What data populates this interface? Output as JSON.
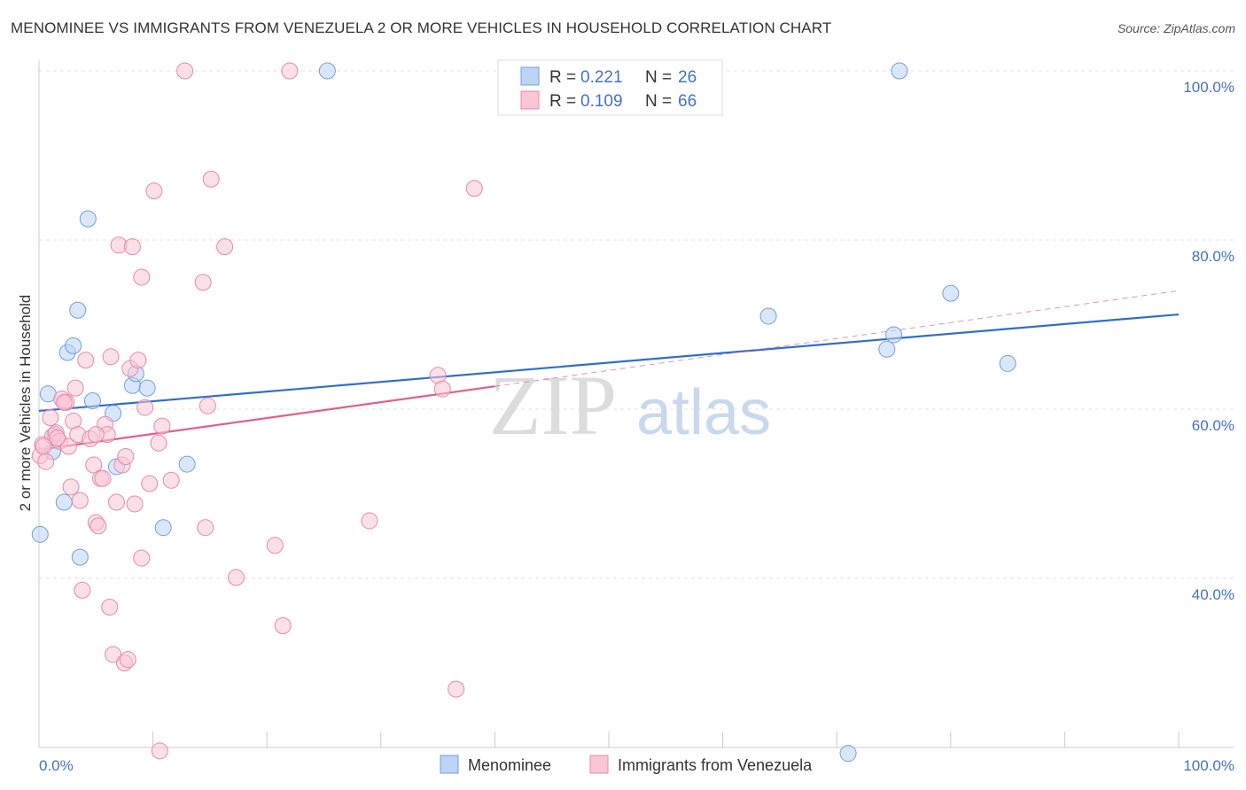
{
  "chart_data": {
    "type": "scatter",
    "title": "MENOMINEE VS IMMIGRANTS FROM VENEZUELA 2 OR MORE VEHICLES IN HOUSEHOLD CORRELATION CHART",
    "source": "Source: ZipAtlas.com",
    "xlabel": "",
    "ylabel": "2 or more Vehicles in Household",
    "xlim": [
      0,
      100
    ],
    "ylim": [
      18,
      102
    ],
    "x_tick_labels": {
      "left": "0.0%",
      "right": "100.0%"
    },
    "y_ticks": [
      {
        "value": 40,
        "label": "40.0%"
      },
      {
        "value": 60,
        "label": "60.0%"
      },
      {
        "value": 80,
        "label": "80.0%"
      },
      {
        "value": 100,
        "label": "100.0%"
      }
    ],
    "watermark": {
      "zip": "ZIP",
      "atlas": "atlas"
    },
    "legend": [
      {
        "r_label": "R =",
        "r_value": "0.221",
        "n_label": "N =",
        "n_value": "26"
      },
      {
        "r_label": "R =",
        "r_value": "0.109",
        "n_label": "N =",
        "n_value": "66"
      }
    ],
    "series": [
      {
        "name": "Menominee",
        "color": "#6f9fe0",
        "fill": "#bcd4f5",
        "line_color": "#2f6fcc",
        "trend": {
          "x0": 0,
          "y0": 59.8,
          "x1": 100,
          "y1": 71.2
        },
        "points": [
          [
            0.1,
            45.2
          ],
          [
            0.8,
            61.8
          ],
          [
            1.2,
            55.0
          ],
          [
            1.4,
            57.0
          ],
          [
            2.2,
            49.0
          ],
          [
            2.5,
            66.7
          ],
          [
            3.0,
            67.5
          ],
          [
            3.4,
            71.7
          ],
          [
            3.6,
            42.5
          ],
          [
            4.3,
            82.5
          ],
          [
            4.7,
            61.0
          ],
          [
            6.5,
            59.5
          ],
          [
            6.8,
            53.2
          ],
          [
            8.2,
            62.8
          ],
          [
            8.5,
            64.2
          ],
          [
            9.5,
            62.5
          ],
          [
            10.9,
            46.0
          ],
          [
            13.0,
            53.5
          ],
          [
            25.3,
            100.0
          ],
          [
            64.0,
            71.0
          ],
          [
            74.4,
            67.1
          ],
          [
            75.0,
            68.8
          ],
          [
            75.5,
            100.0
          ],
          [
            80.0,
            73.7
          ],
          [
            85.0,
            65.4
          ],
          [
            71.0,
            19.3
          ]
        ]
      },
      {
        "name": "Immigrants from Venezuela",
        "color": "#e888a8",
        "fill": "#f9c6d6",
        "line_color": "#e06090",
        "trend": {
          "x0": 0,
          "y0": 55.2,
          "x1": 40,
          "y1": 62.7
        },
        "trend_ext": {
          "x0": 40,
          "y0": 62.7,
          "x1": 100,
          "y1": 74.0
        },
        "points": [
          [
            0.1,
            54.5
          ],
          [
            0.3,
            55.8
          ],
          [
            0.6,
            53.8
          ],
          [
            1.0,
            59.0
          ],
          [
            1.2,
            56.8
          ],
          [
            1.5,
            57.2
          ],
          [
            1.8,
            56.2
          ],
          [
            2.0,
            61.2
          ],
          [
            2.4,
            60.8
          ],
          [
            2.6,
            55.6
          ],
          [
            2.8,
            50.8
          ],
          [
            3.0,
            58.6
          ],
          [
            3.2,
            62.5
          ],
          [
            3.4,
            57.0
          ],
          [
            3.6,
            49.2
          ],
          [
            3.8,
            38.6
          ],
          [
            4.1,
            65.8
          ],
          [
            4.5,
            56.5
          ],
          [
            4.8,
            53.4
          ],
          [
            5.0,
            46.6
          ],
          [
            5.2,
            46.2
          ],
          [
            5.4,
            51.8
          ],
          [
            5.6,
            51.8
          ],
          [
            5.8,
            58.2
          ],
          [
            6.0,
            57.0
          ],
          [
            6.2,
            36.6
          ],
          [
            6.3,
            66.2
          ],
          [
            6.5,
            31.0
          ],
          [
            6.8,
            49.0
          ],
          [
            7.0,
            79.4
          ],
          [
            7.3,
            53.4
          ],
          [
            7.5,
            30.0
          ],
          [
            7.6,
            54.4
          ],
          [
            7.8,
            30.4
          ],
          [
            8.0,
            64.8
          ],
          [
            8.2,
            79.2
          ],
          [
            8.4,
            48.8
          ],
          [
            8.7,
            65.8
          ],
          [
            9.0,
            75.6
          ],
          [
            9.0,
            42.4
          ],
          [
            9.3,
            60.2
          ],
          [
            9.7,
            51.2
          ],
          [
            10.1,
            85.8
          ],
          [
            10.5,
            56.0
          ],
          [
            10.6,
            19.6
          ],
          [
            10.8,
            58.0
          ],
          [
            11.6,
            51.6
          ],
          [
            12.8,
            100.0
          ],
          [
            14.4,
            75.0
          ],
          [
            14.6,
            46.0
          ],
          [
            14.8,
            60.4
          ],
          [
            15.1,
            87.2
          ],
          [
            16.3,
            79.2
          ],
          [
            17.3,
            40.1
          ],
          [
            20.7,
            43.9
          ],
          [
            21.4,
            34.4
          ],
          [
            22.0,
            100.0
          ],
          [
            29.0,
            46.8
          ],
          [
            35.0,
            64.0
          ],
          [
            35.4,
            62.4
          ],
          [
            36.6,
            26.9
          ],
          [
            38.2,
            86.1
          ],
          [
            1.6,
            56.6
          ],
          [
            2.2,
            60.8
          ],
          [
            0.4,
            55.6
          ],
          [
            5.0,
            57.0
          ]
        ]
      }
    ]
  }
}
